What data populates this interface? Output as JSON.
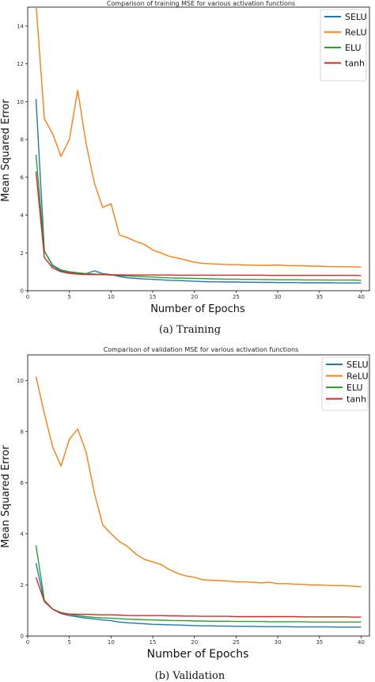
{
  "colors": {
    "SELU": "#1f77b4",
    "ReLU": "#ff7f0e",
    "ELU": "#2ca02c",
    "tanh": "#d62728"
  },
  "chart_data": [
    {
      "type": "line",
      "title": "Comparison of training MSE for various activation functions",
      "xlabel": "Number of Epochs",
      "ylabel": "Mean Squared Error",
      "caption": "(a) Training",
      "xlim": [
        0,
        41
      ],
      "ylim": [
        0,
        15
      ],
      "xticks": [
        0,
        5,
        10,
        15,
        20,
        25,
        30,
        35,
        40
      ],
      "yticks": [
        0,
        2,
        4,
        6,
        8,
        10,
        12,
        14
      ],
      "legend_position": "top-right",
      "grid": false,
      "x": [
        1,
        2,
        3,
        4,
        5,
        6,
        7,
        8,
        9,
        10,
        11,
        12,
        13,
        14,
        15,
        16,
        17,
        18,
        19,
        20,
        21,
        22,
        23,
        24,
        25,
        26,
        27,
        28,
        29,
        30,
        31,
        32,
        33,
        34,
        35,
        36,
        37,
        38,
        39,
        40
      ],
      "series": [
        {
          "name": "SELU",
          "values": [
            10.15,
            2.1,
            1.3,
            1.05,
            0.95,
            0.92,
            0.9,
            1.05,
            0.9,
            0.85,
            0.75,
            0.68,
            0.65,
            0.62,
            0.6,
            0.58,
            0.55,
            0.54,
            0.52,
            0.5,
            0.48,
            0.47,
            0.47,
            0.46,
            0.46,
            0.45,
            0.45,
            0.44,
            0.44,
            0.43,
            0.43,
            0.43,
            0.42,
            0.42,
            0.42,
            0.42,
            0.41,
            0.41,
            0.41,
            0.41
          ]
        },
        {
          "name": "ReLU",
          "values": [
            15.2,
            9.1,
            8.3,
            7.1,
            8.0,
            10.6,
            7.8,
            5.7,
            4.4,
            4.6,
            2.95,
            2.8,
            2.6,
            2.45,
            2.15,
            2.0,
            1.82,
            1.72,
            1.62,
            1.5,
            1.45,
            1.42,
            1.4,
            1.38,
            1.38,
            1.36,
            1.35,
            1.34,
            1.34,
            1.36,
            1.33,
            1.32,
            1.32,
            1.3,
            1.3,
            1.28,
            1.27,
            1.27,
            1.26,
            1.25
          ]
        },
        {
          "name": "ELU",
          "values": [
            7.2,
            2.1,
            1.35,
            1.1,
            1.0,
            0.95,
            0.9,
            0.88,
            0.86,
            0.84,
            0.8,
            0.78,
            0.76,
            0.74,
            0.72,
            0.7,
            0.68,
            0.67,
            0.66,
            0.65,
            0.64,
            0.63,
            0.62,
            0.61,
            0.61,
            0.6,
            0.6,
            0.59,
            0.59,
            0.58,
            0.58,
            0.58,
            0.57,
            0.57,
            0.57,
            0.56,
            0.56,
            0.56,
            0.56,
            0.55
          ]
        },
        {
          "name": "tanh",
          "values": [
            6.3,
            1.75,
            1.2,
            1.0,
            0.92,
            0.88,
            0.86,
            0.85,
            0.85,
            0.84,
            0.84,
            0.83,
            0.83,
            0.83,
            0.83,
            0.83,
            0.83,
            0.82,
            0.82,
            0.82,
            0.82,
            0.82,
            0.82,
            0.82,
            0.82,
            0.82,
            0.82,
            0.82,
            0.81,
            0.81,
            0.81,
            0.81,
            0.81,
            0.81,
            0.81,
            0.81,
            0.81,
            0.81,
            0.81,
            0.8
          ]
        }
      ]
    },
    {
      "type": "line",
      "title": "Comparison of validation MSE for various activation functions",
      "xlabel": "Number of Epochs",
      "ylabel": "Mean Squared Error",
      "caption": "(b) Validation",
      "xlim": [
        0,
        41
      ],
      "ylim": [
        0,
        11
      ],
      "xticks": [
        0,
        5,
        10,
        15,
        20,
        25,
        30,
        35,
        40
      ],
      "yticks": [
        0,
        2,
        4,
        6,
        8,
        10
      ],
      "legend_position": "top-right",
      "grid": false,
      "x": [
        1,
        2,
        3,
        4,
        5,
        6,
        7,
        8,
        9,
        10,
        11,
        12,
        13,
        14,
        15,
        16,
        17,
        18,
        19,
        20,
        21,
        22,
        23,
        24,
        25,
        26,
        27,
        28,
        29,
        30,
        31,
        32,
        33,
        34,
        35,
        36,
        37,
        38,
        39,
        40
      ],
      "series": [
        {
          "name": "SELU",
          "values": [
            2.85,
            1.35,
            1.05,
            0.88,
            0.8,
            0.75,
            0.7,
            0.67,
            0.63,
            0.6,
            0.55,
            0.52,
            0.5,
            0.48,
            0.46,
            0.45,
            0.44,
            0.43,
            0.42,
            0.41,
            0.4,
            0.4,
            0.39,
            0.39,
            0.38,
            0.38,
            0.38,
            0.37,
            0.37,
            0.37,
            0.37,
            0.36,
            0.36,
            0.36,
            0.36,
            0.36,
            0.35,
            0.35,
            0.35,
            0.35
          ]
        },
        {
          "name": "ReLU",
          "values": [
            10.15,
            8.7,
            7.4,
            6.65,
            7.7,
            8.1,
            7.2,
            5.6,
            4.35,
            4.0,
            3.7,
            3.5,
            3.2,
            3.0,
            2.9,
            2.8,
            2.6,
            2.45,
            2.35,
            2.3,
            2.2,
            2.18,
            2.17,
            2.15,
            2.12,
            2.12,
            2.1,
            2.08,
            2.1,
            2.05,
            2.05,
            2.03,
            2.02,
            2.0,
            2.0,
            1.98,
            1.97,
            1.97,
            1.95,
            1.93
          ]
        },
        {
          "name": "ELU",
          "values": [
            3.55,
            1.4,
            1.05,
            0.92,
            0.85,
            0.8,
            0.76,
            0.73,
            0.71,
            0.7,
            0.68,
            0.66,
            0.65,
            0.64,
            0.63,
            0.62,
            0.61,
            0.6,
            0.6,
            0.59,
            0.59,
            0.58,
            0.58,
            0.58,
            0.57,
            0.57,
            0.57,
            0.57,
            0.56,
            0.56,
            0.56,
            0.56,
            0.56,
            0.55,
            0.55,
            0.55,
            0.55,
            0.55,
            0.55,
            0.55
          ]
        },
        {
          "name": "tanh",
          "values": [
            2.3,
            1.35,
            1.05,
            0.9,
            0.86,
            0.85,
            0.85,
            0.84,
            0.83,
            0.83,
            0.82,
            0.81,
            0.8,
            0.8,
            0.8,
            0.8,
            0.79,
            0.79,
            0.78,
            0.78,
            0.77,
            0.77,
            0.77,
            0.77,
            0.76,
            0.76,
            0.76,
            0.76,
            0.76,
            0.76,
            0.76,
            0.76,
            0.75,
            0.75,
            0.75,
            0.75,
            0.75,
            0.75,
            0.74,
            0.74
          ]
        }
      ]
    }
  ]
}
